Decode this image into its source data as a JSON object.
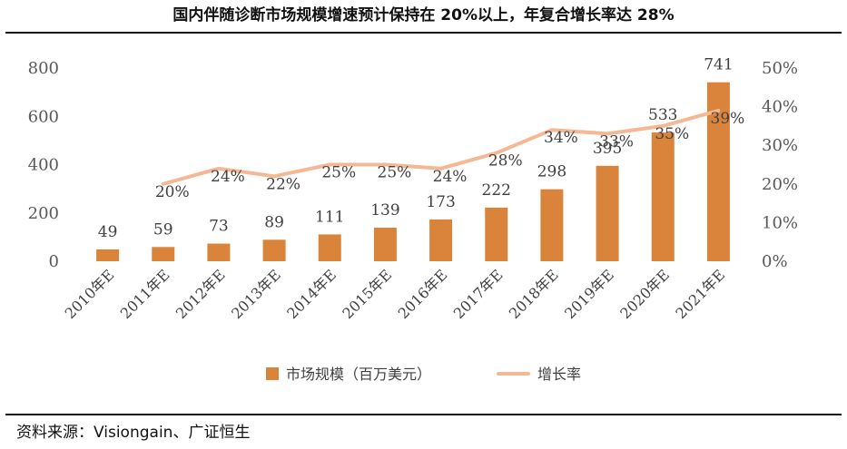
{
  "header": {
    "title": "国内伴随诊断市场规模增速预计保持在 20%以上，年复合增长率达 28%"
  },
  "footer": {
    "source": "资料来源：Visiongain、广证恒生"
  },
  "colors": {
    "bar": "#D9843A",
    "line": "#F4B894",
    "axis_text": "#595959"
  },
  "chart_data": {
    "type": "bar",
    "categories": [
      "2010年E",
      "2011年E",
      "2012年E",
      "2013年E",
      "2014年E",
      "2015年E",
      "2016年E",
      "2017年E",
      "2018年E",
      "2019年E",
      "2020年E",
      "2021年E"
    ],
    "series": [
      {
        "name": "市场规模（百万美元）",
        "type": "bar",
        "axis": "left",
        "values": [
          49,
          59,
          73,
          89,
          111,
          139,
          173,
          222,
          298,
          395,
          533,
          741
        ],
        "labels": [
          "49",
          "59",
          "73",
          "89",
          "111",
          "139",
          "173",
          "222",
          "298",
          "395",
          "533",
          "741"
        ]
      },
      {
        "name": "增长率",
        "type": "line",
        "axis": "right",
        "values": [
          null,
          20,
          24,
          22,
          25,
          25,
          24,
          28,
          34,
          33,
          35,
          39
        ],
        "labels": [
          "",
          "20%",
          "24%",
          "22%",
          "25%",
          "25%",
          "24%",
          "28%",
          "34%",
          "33%",
          "35%",
          "39%"
        ]
      }
    ],
    "y_left": {
      "ylim": [
        0,
        800
      ],
      "ticks": [
        "0",
        "200",
        "400",
        "600",
        "800"
      ],
      "tick_values": [
        0,
        200,
        400,
        600,
        800
      ]
    },
    "y_right": {
      "ylim": [
        0,
        50
      ],
      "ticks": [
        "0%",
        "10%",
        "20%",
        "30%",
        "40%",
        "50%"
      ],
      "tick_values": [
        0,
        10,
        20,
        30,
        40,
        50
      ]
    },
    "legend_position": "bottom",
    "grid": false
  }
}
